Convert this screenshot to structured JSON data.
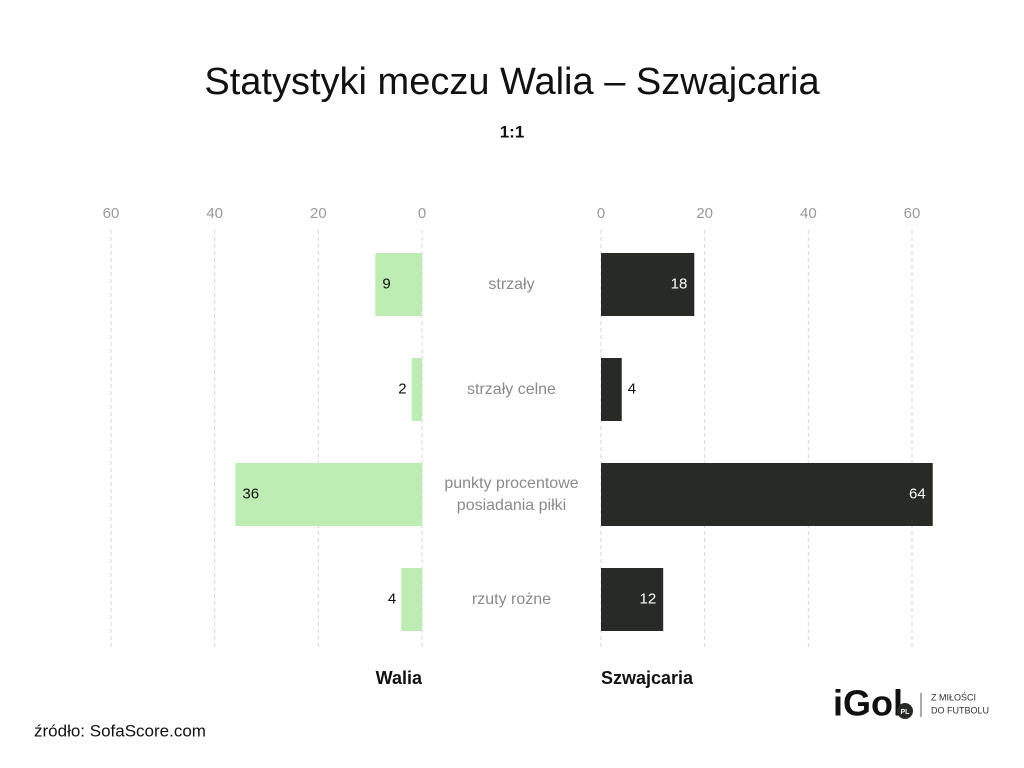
{
  "chart_data": {
    "type": "butterfly",
    "title": "Statystyki meczu Walia – Szwajcaria",
    "subtitle": "1:1",
    "categories": [
      "strzały",
      "strzały celne",
      "punkty procentowe posiadania piłki",
      "rzuty rożne"
    ],
    "series": [
      {
        "name": "Walia",
        "color": "#bdedb3",
        "values": [
          9,
          2,
          36,
          4
        ]
      },
      {
        "name": "Szwajcaria",
        "color": "#272a25",
        "values": [
          18,
          4,
          64,
          12
        ]
      }
    ],
    "xlim": [
      0,
      64
    ],
    "xticks": [
      0,
      20,
      40,
      60
    ],
    "grid": true,
    "source": "źródło: SofaScore.com"
  },
  "branding": {
    "name": "iGol",
    "badge": "PL",
    "tagline": [
      "Z MIŁOŚCI",
      "DO FUTBOLU"
    ]
  }
}
